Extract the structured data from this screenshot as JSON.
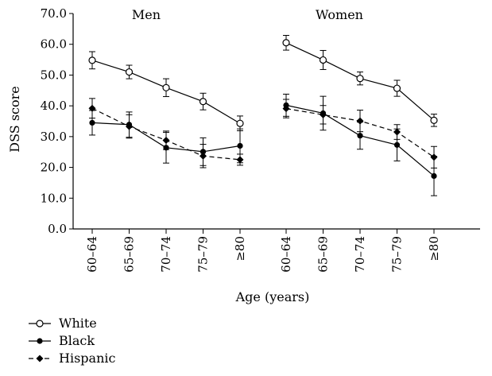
{
  "chart_data": {
    "type": "line",
    "title": "",
    "ylabel": "DSS score",
    "xlabel": "Age (years)",
    "ylim": [
      0,
      70
    ],
    "yticks": [
      "0.0",
      "10.0",
      "20.0",
      "30.0",
      "40.0",
      "50.0",
      "60.0",
      "70.0"
    ],
    "categories": [
      "60–64",
      "65–69",
      "70–74",
      "75–79",
      "≥80"
    ],
    "grid": false,
    "legend_position": "bottom-left",
    "panels": [
      {
        "name": "Men",
        "series": [
          {
            "name": "White",
            "values": [
              54.8,
              51.0,
              45.9,
              41.4,
              34.3
            ],
            "err": [
              2.8,
              2.2,
              2.9,
              2.7,
              2.4
            ]
          },
          {
            "name": "Black",
            "values": [
              34.5,
              33.9,
              26.4,
              25.1,
              27.0
            ],
            "err": [
              4.0,
              4.1,
              5.0,
              4.5,
              5.5
            ]
          },
          {
            "name": "Hispanic",
            "values": [
              39.2,
              33.3,
              28.8,
              23.7,
              22.5
            ],
            "err": [
              3.2,
              3.8,
              3.0,
              3.8,
              1.8
            ]
          }
        ]
      },
      {
        "name": "Women",
        "series": [
          {
            "name": "White",
            "values": [
              60.5,
              54.9,
              48.9,
              45.7,
              35.3
            ],
            "err": [
              2.4,
              3.1,
              2.1,
              2.6,
              2.0
            ]
          },
          {
            "name": "Black",
            "values": [
              40.2,
              37.6,
              30.3,
              27.3,
              17.2
            ],
            "err": [
              3.6,
              5.5,
              4.4,
              5.2,
              6.4
            ]
          },
          {
            "name": "Hispanic",
            "values": [
              39.1,
              37.1,
              35.1,
              31.5,
              23.3
            ],
            "err": [
              3.0,
              3.0,
              3.5,
              2.4,
              3.5
            ]
          }
        ]
      }
    ],
    "series_styles": {
      "White": {
        "line": "solid",
        "marker": "open-circle",
        "color": "#000000"
      },
      "Black": {
        "line": "solid",
        "marker": "filled-circle",
        "color": "#000000"
      },
      "Hispanic": {
        "line": "dashed",
        "marker": "filled-diamond",
        "color": "#000000"
      }
    }
  }
}
